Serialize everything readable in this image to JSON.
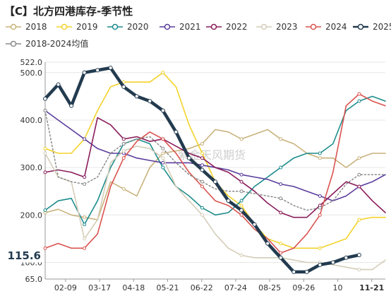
{
  "title": "【C】北方四港库存-季节性",
  "watermark": "紫金天风期货",
  "colors": {
    "2018": "#c9b27c",
    "2019": "#f2d22c",
    "2020": "#1e8c8c",
    "2021": "#5a3d9c",
    "2022": "#8a1c5a",
    "2023": "#d4cdb8",
    "2024": "#d9534f",
    "2025": "#233b4f",
    "avg": "#8a8a8a"
  },
  "chart_data": {
    "type": "line",
    "x_tick_labels": [
      "02-09",
      "03-17",
      "04-18",
      "05-21",
      "06-22",
      "07-24",
      "08-25",
      "09-26",
      "10",
      "11-21"
    ],
    "y_tick_labels": [
      "65.0",
      "100.0",
      "200.0",
      "300.0",
      "400.0",
      "500.0",
      "522.0"
    ],
    "ylim": [
      65.0,
      522.0
    ],
    "last_value_label": "115.6",
    "x": [
      0,
      2,
      4,
      6,
      8,
      10,
      12,
      14,
      16,
      18,
      20,
      22,
      24,
      26,
      28,
      30,
      32,
      34,
      36,
      38,
      40,
      42,
      44,
      46,
      48,
      50,
      52
    ],
    "series": [
      {
        "name": "2018",
        "key": "2018",
        "dashed": false,
        "values": [
          205,
          212,
          200,
          195,
          190,
          270,
          255,
          240,
          300,
          330,
          335,
          340,
          350,
          380,
          375,
          360,
          370,
          380,
          360,
          350,
          330,
          320,
          320,
          300,
          320,
          330,
          330
        ]
      },
      {
        "name": "2019",
        "key": "2019",
        "dashed": false,
        "values": [
          340,
          330,
          330,
          360,
          420,
          470,
          480,
          480,
          480,
          500,
          470,
          390,
          330,
          270,
          240,
          220,
          180,
          150,
          140,
          130,
          130,
          130,
          140,
          150,
          190,
          195,
          195
        ]
      },
      {
        "name": "2020",
        "key": "2020",
        "dashed": false,
        "values": [
          210,
          230,
          235,
          180,
          230,
          300,
          350,
          360,
          350,
          300,
          260,
          240,
          215,
          200,
          205,
          230,
          260,
          280,
          300,
          320,
          330,
          330,
          350,
          420,
          440,
          450,
          440
        ]
      },
      {
        "name": "2021",
        "key": "2021",
        "dashed": false,
        "values": [
          420,
          400,
          380,
          360,
          340,
          330,
          330,
          320,
          315,
          310,
          310,
          310,
          305,
          300,
          295,
          285,
          280,
          275,
          265,
          260,
          250,
          240,
          230,
          240,
          260,
          270,
          285
        ]
      },
      {
        "name": "2022",
        "key": "2022",
        "dashed": false,
        "values": [
          290,
          295,
          290,
          280,
          405,
          390,
          360,
          365,
          355,
          360,
          345,
          330,
          320,
          300,
          290,
          270,
          250,
          225,
          205,
          195,
          195,
          220,
          245,
          270,
          260,
          230,
          205
        ]
      },
      {
        "name": "2023",
        "key": "2023",
        "dashed": false,
        "values": [
          330,
          280,
          270,
          150,
          190,
          310,
          335,
          345,
          340,
          320,
          260,
          230,
          200,
          160,
          130,
          115,
          110,
          110,
          110,
          105,
          100,
          100,
          95,
          90,
          85,
          85,
          105
        ]
      },
      {
        "name": "2024",
        "key": "2024",
        "dashed": false,
        "values": [
          130,
          140,
          130,
          130,
          160,
          260,
          320,
          355,
          375,
          360,
          330,
          290,
          260,
          230,
          220,
          200,
          170,
          150,
          120,
          130,
          160,
          200,
          290,
          430,
          455,
          440,
          430
        ]
      },
      {
        "name": "2025",
        "key": "2025",
        "dashed": false,
        "values": [
          445,
          475,
          430,
          500,
          505,
          510,
          470,
          450,
          440,
          420,
          375,
          320,
          295,
          270,
          230,
          210,
          180,
          140,
          110,
          80,
          80,
          95,
          100,
          110,
          115.6,
          null,
          null
        ]
      },
      {
        "name": "2018-2024均值",
        "key": "avg",
        "dashed": true,
        "values": [
          420,
          280,
          270,
          265,
          280,
          330,
          350,
          360,
          365,
          340,
          310,
          285,
          270,
          255,
          250,
          250,
          245,
          240,
          235,
          220,
          210,
          215,
          230,
          265,
          285,
          285,
          285
        ]
      }
    ]
  },
  "legend": [
    {
      "label": "2018",
      "key": "2018"
    },
    {
      "label": "2019",
      "key": "2019"
    },
    {
      "label": "2020",
      "key": "2020"
    },
    {
      "label": "2021",
      "key": "2021"
    },
    {
      "label": "2022",
      "key": "2022"
    },
    {
      "label": "2023",
      "key": "2023"
    },
    {
      "label": "2024",
      "key": "2024"
    },
    {
      "label": "2025",
      "key": "2025"
    },
    {
      "label": "2018-2024均值",
      "key": "avg"
    }
  ]
}
